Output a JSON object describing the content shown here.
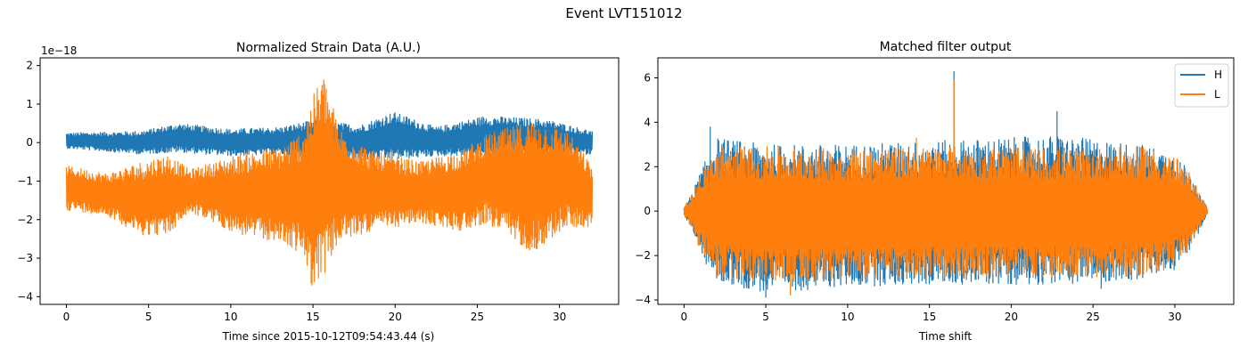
{
  "figure": {
    "suptitle": "Event LVT151012"
  },
  "colors": {
    "H": "#1f77b4",
    "L": "#ff7f0e",
    "axis": "#000000",
    "background": "#ffffff"
  },
  "chart_data": [
    {
      "type": "line",
      "title": "Normalized Strain Data (A.U.)",
      "xlabel": "Time since 2015-10-12T09:54:43.44 (s)",
      "ylabel": "",
      "y_offset_text": "1e−18",
      "xlim": [
        -1.6,
        33.6
      ],
      "ylim": [
        -4.2,
        2.2
      ],
      "xticks": [
        0,
        5,
        10,
        15,
        20,
        25,
        30
      ],
      "yticks": [
        -4,
        -3,
        -2,
        -1,
        0,
        1,
        2
      ],
      "xtick_labels": [
        "0",
        "5",
        "10",
        "15",
        "20",
        "25",
        "30"
      ],
      "ytick_labels": [
        "−4",
        "−3",
        "−2",
        "−1",
        "0",
        "1",
        "2"
      ],
      "grid": false,
      "legend": "none",
      "x_range": [
        0,
        32
      ],
      "series": [
        {
          "key": "H",
          "envelope": [
            {
              "x": 0,
              "upper": 0.25,
              "lower": -0.15
            },
            {
              "x": 4.5,
              "upper": 0.3,
              "lower": -0.3
            },
            {
              "x": 6.8,
              "upper": 0.5,
              "lower": -0.25
            },
            {
              "x": 10,
              "upper": 0.35,
              "lower": -0.35
            },
            {
              "x": 13,
              "upper": 0.4,
              "lower": -0.3
            },
            {
              "x": 15.2,
              "upper": 0.6,
              "lower": -0.45
            },
            {
              "x": 17.8,
              "upper": 0.45,
              "lower": -0.45
            },
            {
              "x": 19.9,
              "upper": 0.8,
              "lower": -0.45
            },
            {
              "x": 22.5,
              "upper": 0.4,
              "lower": -0.35
            },
            {
              "x": 25.5,
              "upper": 0.7,
              "lower": -0.35
            },
            {
              "x": 29.2,
              "upper": 0.6,
              "lower": -0.35
            },
            {
              "x": 32,
              "upper": 0.3,
              "lower": -0.3
            }
          ]
        },
        {
          "key": "L",
          "envelope": [
            {
              "x": 0,
              "upper": -0.6,
              "lower": -1.75
            },
            {
              "x": 2.5,
              "upper": -0.8,
              "lower": -1.9
            },
            {
              "x": 4.5,
              "upper": -0.5,
              "lower": -2.4
            },
            {
              "x": 6.2,
              "upper": -0.3,
              "lower": -2.4
            },
            {
              "x": 7.5,
              "upper": -0.7,
              "lower": -1.8
            },
            {
              "x": 10.5,
              "upper": -0.3,
              "lower": -2.4
            },
            {
              "x": 13.0,
              "upper": -0.1,
              "lower": -2.6
            },
            {
              "x": 14.3,
              "upper": 0.3,
              "lower": -2.9
            },
            {
              "x": 15.0,
              "upper": 1.2,
              "lower": -3.8
            },
            {
              "x": 15.6,
              "upper": 1.85,
              "lower": -3.5
            },
            {
              "x": 16.6,
              "upper": 0.4,
              "lower": -2.6
            },
            {
              "x": 18.5,
              "upper": -0.2,
              "lower": -2.3
            },
            {
              "x": 21.5,
              "upper": -0.5,
              "lower": -2.1
            },
            {
              "x": 24.0,
              "upper": -0.2,
              "lower": -2.3
            },
            {
              "x": 25.5,
              "upper": 0.2,
              "lower": -2.1
            },
            {
              "x": 28.4,
              "upper": 0.6,
              "lower": -2.85
            },
            {
              "x": 30.5,
              "upper": 0.3,
              "lower": -2.2
            },
            {
              "x": 32.0,
              "upper": -0.6,
              "lower": -2.2
            }
          ]
        }
      ]
    },
    {
      "type": "line",
      "title": "Matched filter output",
      "xlabel": "Time shift",
      "ylabel": "",
      "xlim": [
        -1.6,
        33.6
      ],
      "ylim": [
        -4.2,
        6.9
      ],
      "xticks": [
        0,
        5,
        10,
        15,
        20,
        25,
        30
      ],
      "yticks": [
        -4,
        -2,
        0,
        2,
        4,
        6
      ],
      "xtick_labels": [
        "0",
        "5",
        "10",
        "15",
        "20",
        "25",
        "30"
      ],
      "ytick_labels": [
        "−4",
        "−2",
        "0",
        "2",
        "4",
        "6"
      ],
      "grid": false,
      "legend": "top-right",
      "x_range": [
        0,
        32
      ],
      "series": [
        {
          "key": "H",
          "name": "H",
          "envelope": [
            {
              "x": 0,
              "upper": 0.2,
              "lower": -0.2
            },
            {
              "x": 0.5,
              "upper": 0.8,
              "lower": -0.8
            },
            {
              "x": 1.0,
              "upper": 1.8,
              "lower": -2.0
            },
            {
              "x": 2.0,
              "upper": 3.3,
              "lower": -3.2
            },
            {
              "x": 5.0,
              "upper": 3.0,
              "lower": -3.7
            },
            {
              "x": 10.0,
              "upper": 3.0,
              "lower": -3.4
            },
            {
              "x": 16.5,
              "upper": 3.2,
              "lower": -3.3
            },
            {
              "x": 22.8,
              "upper": 3.4,
              "lower": -3.3
            },
            {
              "x": 28.0,
              "upper": 3.0,
              "lower": -3.1
            },
            {
              "x": 30.0,
              "upper": 2.6,
              "lower": -2.7
            },
            {
              "x": 31.0,
              "upper": 1.7,
              "lower": -1.7
            },
            {
              "x": 32.0,
              "upper": 0.1,
              "lower": -0.1
            }
          ],
          "peaks": [
            {
              "x": 1.6,
              "y": 3.8
            },
            {
              "x": 5.0,
              "y": -3.9
            },
            {
              "x": 16.5,
              "y": 6.3
            },
            {
              "x": 22.8,
              "y": 4.5
            },
            {
              "x": 25.5,
              "y": -3.5
            }
          ]
        },
        {
          "key": "L",
          "name": "L",
          "envelope": [
            {
              "x": 0,
              "upper": 0.2,
              "lower": -0.2
            },
            {
              "x": 0.5,
              "upper": 0.8,
              "lower": -0.8
            },
            {
              "x": 1.0,
              "upper": 1.7,
              "lower": -1.8
            },
            {
              "x": 2.0,
              "upper": 2.9,
              "lower": -3.0
            },
            {
              "x": 5.0,
              "upper": 2.9,
              "lower": -3.2
            },
            {
              "x": 10.0,
              "upper": 2.8,
              "lower": -3.1
            },
            {
              "x": 16.5,
              "upper": 2.9,
              "lower": -3.0
            },
            {
              "x": 22.8,
              "upper": 2.8,
              "lower": -3.0
            },
            {
              "x": 28.0,
              "upper": 2.9,
              "lower": -3.0
            },
            {
              "x": 30.0,
              "upper": 2.5,
              "lower": -2.5
            },
            {
              "x": 31.0,
              "upper": 1.6,
              "lower": -1.6
            },
            {
              "x": 32.0,
              "upper": 0.1,
              "lower": -0.1
            }
          ],
          "peaks": [
            {
              "x": 6.5,
              "y": -3.8
            },
            {
              "x": 16.5,
              "y": 5.9
            },
            {
              "x": 14.2,
              "y": 3.3
            }
          ]
        }
      ]
    }
  ]
}
